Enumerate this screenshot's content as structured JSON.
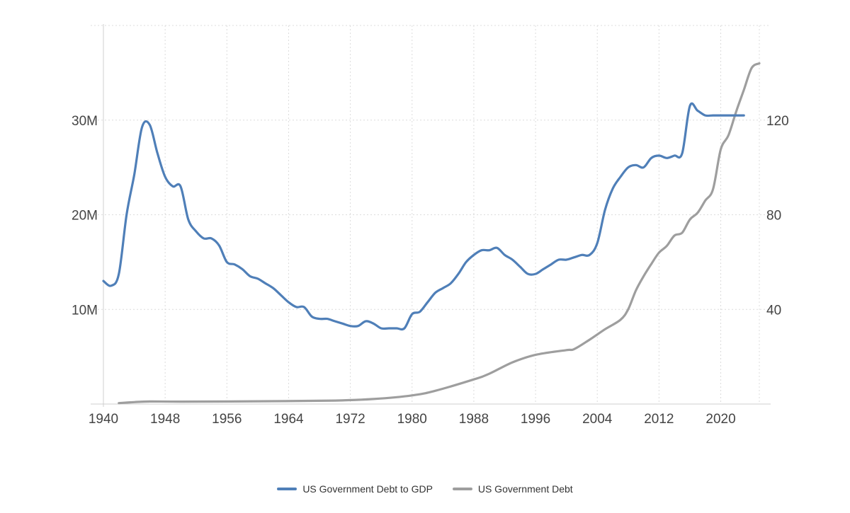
{
  "chart_data": {
    "type": "line",
    "title": "",
    "xlabel": "",
    "x_ticks": [
      "1940",
      "1948",
      "1956",
      "1964",
      "1972",
      "1980",
      "1988",
      "1996",
      "2004",
      "2012",
      "2020"
    ],
    "x_tick_values": [
      1940,
      1948,
      1956,
      1964,
      1972,
      1980,
      1988,
      1996,
      2004,
      2012,
      2020
    ],
    "xlim": [
      1940,
      2025
    ],
    "left_axis": {
      "label": "",
      "ticks": [
        "10M",
        "20M",
        "30M"
      ],
      "tick_values": [
        10000000,
        20000000,
        30000000
      ],
      "ylim": [
        0,
        40000000
      ]
    },
    "right_axis": {
      "label": "",
      "ticks": [
        "40",
        "80",
        "120"
      ],
      "tick_values": [
        40,
        80,
        120
      ],
      "ylim": [
        0,
        160
      ]
    },
    "grid": true,
    "legend_position": "bottom-center",
    "series": [
      {
        "name": "US Government Debt to GDP",
        "axis": "right",
        "color": "#4f7fb8",
        "x": [
          1940,
          1941,
          1942,
          1943,
          1944,
          1945,
          1946,
          1947,
          1948,
          1949,
          1950,
          1951,
          1952,
          1953,
          1954,
          1955,
          1956,
          1957,
          1958,
          1959,
          1960,
          1961,
          1962,
          1963,
          1964,
          1965,
          1966,
          1967,
          1968,
          1969,
          1970,
          1971,
          1972,
          1973,
          1974,
          1975,
          1976,
          1977,
          1978,
          1979,
          1980,
          1981,
          1982,
          1983,
          1984,
          1985,
          1986,
          1987,
          1988,
          1989,
          1990,
          1991,
          1992,
          1993,
          1994,
          1995,
          1996,
          1997,
          1998,
          1999,
          2000,
          2001,
          2002,
          2003,
          2004,
          2005,
          2006,
          2007,
          2008,
          2009,
          2010,
          2011,
          2012,
          2013,
          2014,
          2015,
          2016,
          2017,
          2018,
          2019,
          2020,
          2021,
          2022,
          2023
        ],
        "values": [
          52,
          50,
          55,
          80,
          97,
          117,
          118,
          106,
          96,
          92,
          92,
          78,
          73,
          70,
          70,
          67,
          60,
          59,
          57,
          54,
          53,
          51,
          49,
          46,
          43,
          41,
          41,
          37,
          36,
          36,
          35,
          34,
          33,
          33,
          35,
          34,
          32,
          32,
          32,
          32,
          38,
          39,
          43,
          47,
          49,
          51,
          55,
          60,
          63,
          65,
          65,
          66,
          63,
          61,
          58,
          55,
          55,
          57,
          59,
          61,
          61,
          62,
          63,
          63,
          68,
          82,
          91,
          96,
          100,
          101,
          100,
          104,
          105,
          104,
          105,
          106,
          126,
          124,
          122,
          122,
          122,
          122,
          122,
          122
        ]
      },
      {
        "name": "US Government Debt",
        "axis": "left",
        "color": "#9e9e9e",
        "x": [
          1942,
          1944,
          1946,
          1950,
          1960,
          1970,
          1975,
          1980,
          1983,
          1988,
          1990,
          1993,
          1996,
          2000,
          2001,
          2003,
          2005,
          2007,
          2008,
          2009,
          2010,
          2011,
          2012,
          2013,
          2014,
          2015,
          2016,
          2017,
          2018,
          2019,
          2020,
          2021,
          2022,
          2023,
          2024,
          2025
        ],
        "values": [
          100000,
          200000,
          270000,
          257000,
          290000,
          370000,
          530000,
          910000,
          1400000,
          2600000,
          3200000,
          4400000,
          5200000,
          5700000,
          5800000,
          6800000,
          7900000,
          8900000,
          10000000,
          12000000,
          13500000,
          14800000,
          16000000,
          16700000,
          17800000,
          18100000,
          19500000,
          20200000,
          21500000,
          22700000,
          26900000,
          28400000,
          30900000,
          33200000,
          35500000,
          36000000
        ]
      }
    ]
  }
}
